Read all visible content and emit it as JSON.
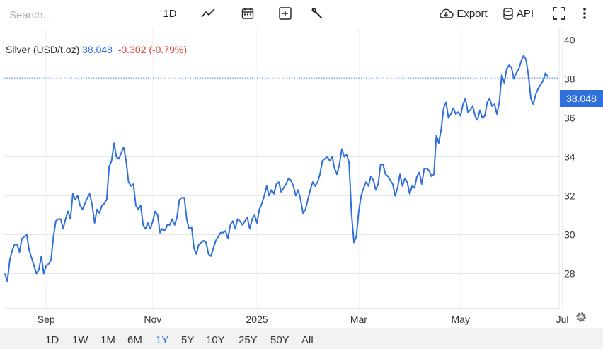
{
  "toolbar": {
    "search_placeholder": "Search...",
    "interval": "1D",
    "export_label": "Export",
    "api_label": "API"
  },
  "legend": {
    "name": "Silver (USD/t.oz)",
    "last": "38.048",
    "change": "-0.302 (-0.79%)"
  },
  "price_tag": "38.048",
  "ranges": [
    "1D",
    "1W",
    "1M",
    "6M",
    "1Y",
    "5Y",
    "10Y",
    "25Y",
    "50Y",
    "All"
  ],
  "active_range": "1Y",
  "colors": {
    "line": "#2f6fde",
    "change_negative": "#e0443a",
    "price_tag": "#2f6fde"
  },
  "chart_data": {
    "type": "line",
    "title": "",
    "xlabel": "",
    "ylabel": "",
    "ylim": [
      26.2,
      40.6
    ],
    "yticks": [
      28,
      30,
      32,
      34,
      36,
      38,
      40
    ],
    "y_axis_position": "right",
    "grid": true,
    "x_tick_labels": [
      {
        "label": "Sep",
        "index": 17
      },
      {
        "label": "Nov",
        "index": 61
      },
      {
        "label": "2025",
        "index": 104
      },
      {
        "label": "Mar",
        "index": 146
      },
      {
        "label": "May",
        "index": 188
      },
      {
        "label": "Jul",
        "index": 230
      }
    ],
    "last_value_line": 38.048,
    "series": [
      {
        "name": "Silver (USD/t.oz)",
        "values": [
          28.0,
          27.6,
          28.7,
          29.2,
          29.5,
          29.5,
          29.1,
          29.8,
          29.9,
          30.0,
          29.2,
          28.8,
          28.4,
          28.0,
          28.2,
          28.9,
          28.0,
          28.4,
          28.5,
          28.7,
          29.9,
          30.7,
          30.8,
          30.8,
          30.3,
          30.8,
          31.2,
          30.8,
          32.1,
          31.8,
          32.0,
          31.5,
          31.3,
          31.6,
          31.9,
          32.1,
          31.5,
          30.6,
          31.3,
          31.1,
          31.5,
          31.6,
          31.8,
          33.5,
          33.8,
          34.7,
          34.0,
          33.9,
          34.2,
          34.5,
          33.8,
          32.7,
          32.5,
          32.6,
          31.5,
          31.3,
          31.5,
          30.5,
          30.3,
          30.6,
          30.3,
          30.7,
          31.2,
          31.0,
          30.1,
          30.3,
          30.2,
          30.5,
          30.5,
          30.8,
          30.5,
          30.9,
          31.8,
          31.9,
          31.9,
          30.8,
          30.3,
          30.4,
          29.3,
          29.0,
          29.5,
          29.6,
          29.7,
          29.6,
          29.0,
          28.9,
          29.3,
          29.7,
          29.9,
          30.1,
          30.1,
          30.2,
          29.8,
          30.5,
          30.7,
          30.3,
          30.8,
          30.7,
          30.5,
          30.7,
          30.9,
          30.3,
          30.8,
          31.0,
          30.6,
          31.3,
          31.6,
          32.0,
          32.5,
          32.0,
          32.3,
          32.1,
          32.6,
          32.7,
          32.2,
          32.4,
          32.6,
          32.9,
          32.8,
          32.5,
          32.0,
          32.3,
          31.8,
          31.1,
          31.3,
          31.8,
          32.3,
          32.7,
          32.5,
          32.7,
          33.1,
          33.8,
          33.9,
          34.0,
          33.8,
          34.0,
          33.4,
          33.1,
          33.6,
          34.4,
          34.0,
          34.1,
          33.7,
          31.1,
          29.6,
          29.9,
          31.2,
          32.0,
          32.4,
          32.7,
          32.5,
          33.0,
          32.8,
          32.3,
          32.6,
          33.6,
          33.6,
          33.1,
          33.0,
          32.8,
          32.6,
          32.0,
          32.4,
          33.1,
          32.5,
          32.9,
          32.7,
          32.1,
          32.5,
          32.4,
          33.0,
          33.2,
          32.6,
          33.4,
          33.4,
          33.3,
          33.0,
          33.1,
          35.1,
          34.7,
          35.4,
          36.5,
          36.8,
          36.0,
          36.2,
          36.5,
          36.2,
          36.3,
          36.1,
          36.7,
          37.0,
          36.3,
          36.4,
          36.6,
          36.1,
          35.9,
          36.4,
          36.0,
          36.1,
          36.8,
          37.0,
          36.6,
          36.7,
          36.2,
          36.8,
          38.2,
          37.8,
          38.5,
          38.7,
          38.6,
          38.0,
          38.3,
          38.5,
          38.9,
          39.2,
          39.0,
          38.2,
          37.0,
          36.7,
          37.2,
          37.5,
          37.7,
          37.9,
          38.3,
          38.1
        ]
      }
    ]
  }
}
